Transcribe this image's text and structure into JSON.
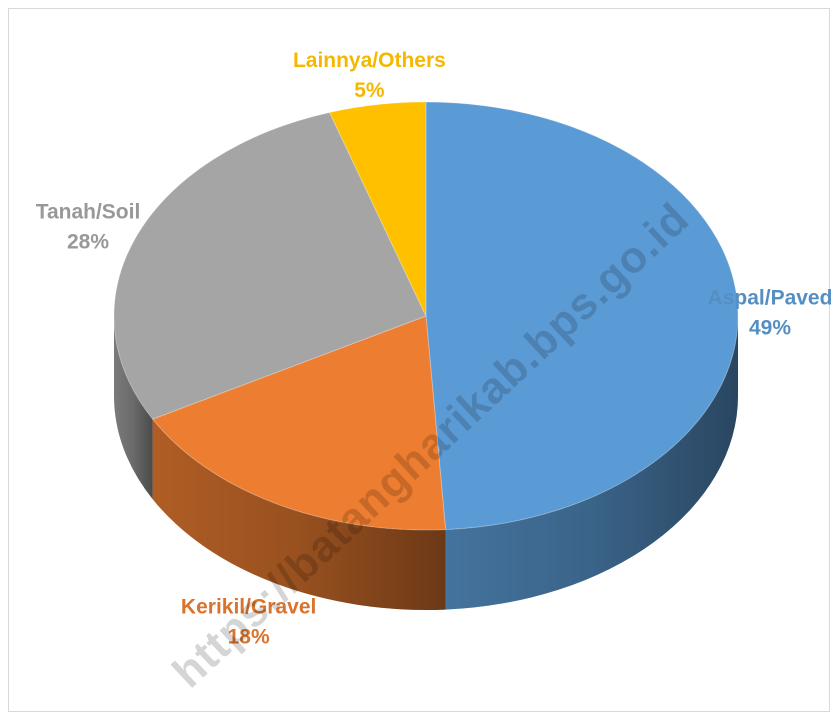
{
  "chart_data": {
    "type": "pie",
    "title": "",
    "slices": [
      {
        "label": "Aspal/Paved",
        "value": 49,
        "percent_label": "49%",
        "color": "#5b9bd5"
      },
      {
        "label": "Kerikil/Gravel",
        "value": 18,
        "percent_label": "18%",
        "color": "#ed7d31"
      },
      {
        "label": "Tanah/Soil",
        "value": 28,
        "percent_label": "28%",
        "color": "#a5a5a5"
      },
      {
        "label": "Lainnya/Others",
        "value": 5,
        "percent_label": "5%",
        "color": "#ffc000"
      }
    ],
    "legend": "none",
    "style": "3d"
  },
  "watermark": "https://batangharikab.bps.go.id"
}
